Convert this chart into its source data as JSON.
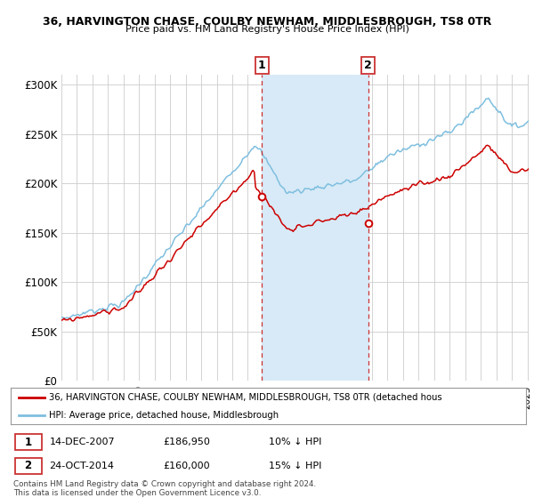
{
  "title1": "36, HARVINGTON CHASE, COULBY NEWHAM, MIDDLESBROUGH, TS8 0TR",
  "title2": "Price paid vs. HM Land Registry's House Price Index (HPI)",
  "ylim": [
    0,
    310000
  ],
  "yticks": [
    0,
    50000,
    100000,
    150000,
    200000,
    250000,
    300000
  ],
  "ytick_labels": [
    "£0",
    "£50K",
    "£100K",
    "£150K",
    "£200K",
    "£250K",
    "£300K"
  ],
  "hpi_color": "#7fbfdf",
  "price_color": "#cc0000",
  "sale1_idx": 155,
  "sale1_price": 186950,
  "sale1_label": "14-DEC-2007",
  "sale1_hpi_pct": "10% ↓ HPI",
  "sale2_idx": 237,
  "sale2_price": 160000,
  "sale2_label": "24-OCT-2014",
  "sale2_hpi_pct": "15% ↓ HPI",
  "legend_line1": "36, HARVINGTON CHASE, COULBY NEWHAM, MIDDLESBROUGH, TS8 0TR (detached hous",
  "legend_line2": "HPI: Average price, detached house, Middlesbrough",
  "footnote1": "Contains HM Land Registry data © Crown copyright and database right 2024.",
  "footnote2": "This data is licensed under the Open Government Licence v3.0.",
  "background_color": "#ffffff",
  "shaded_color": "#d8eaf7"
}
